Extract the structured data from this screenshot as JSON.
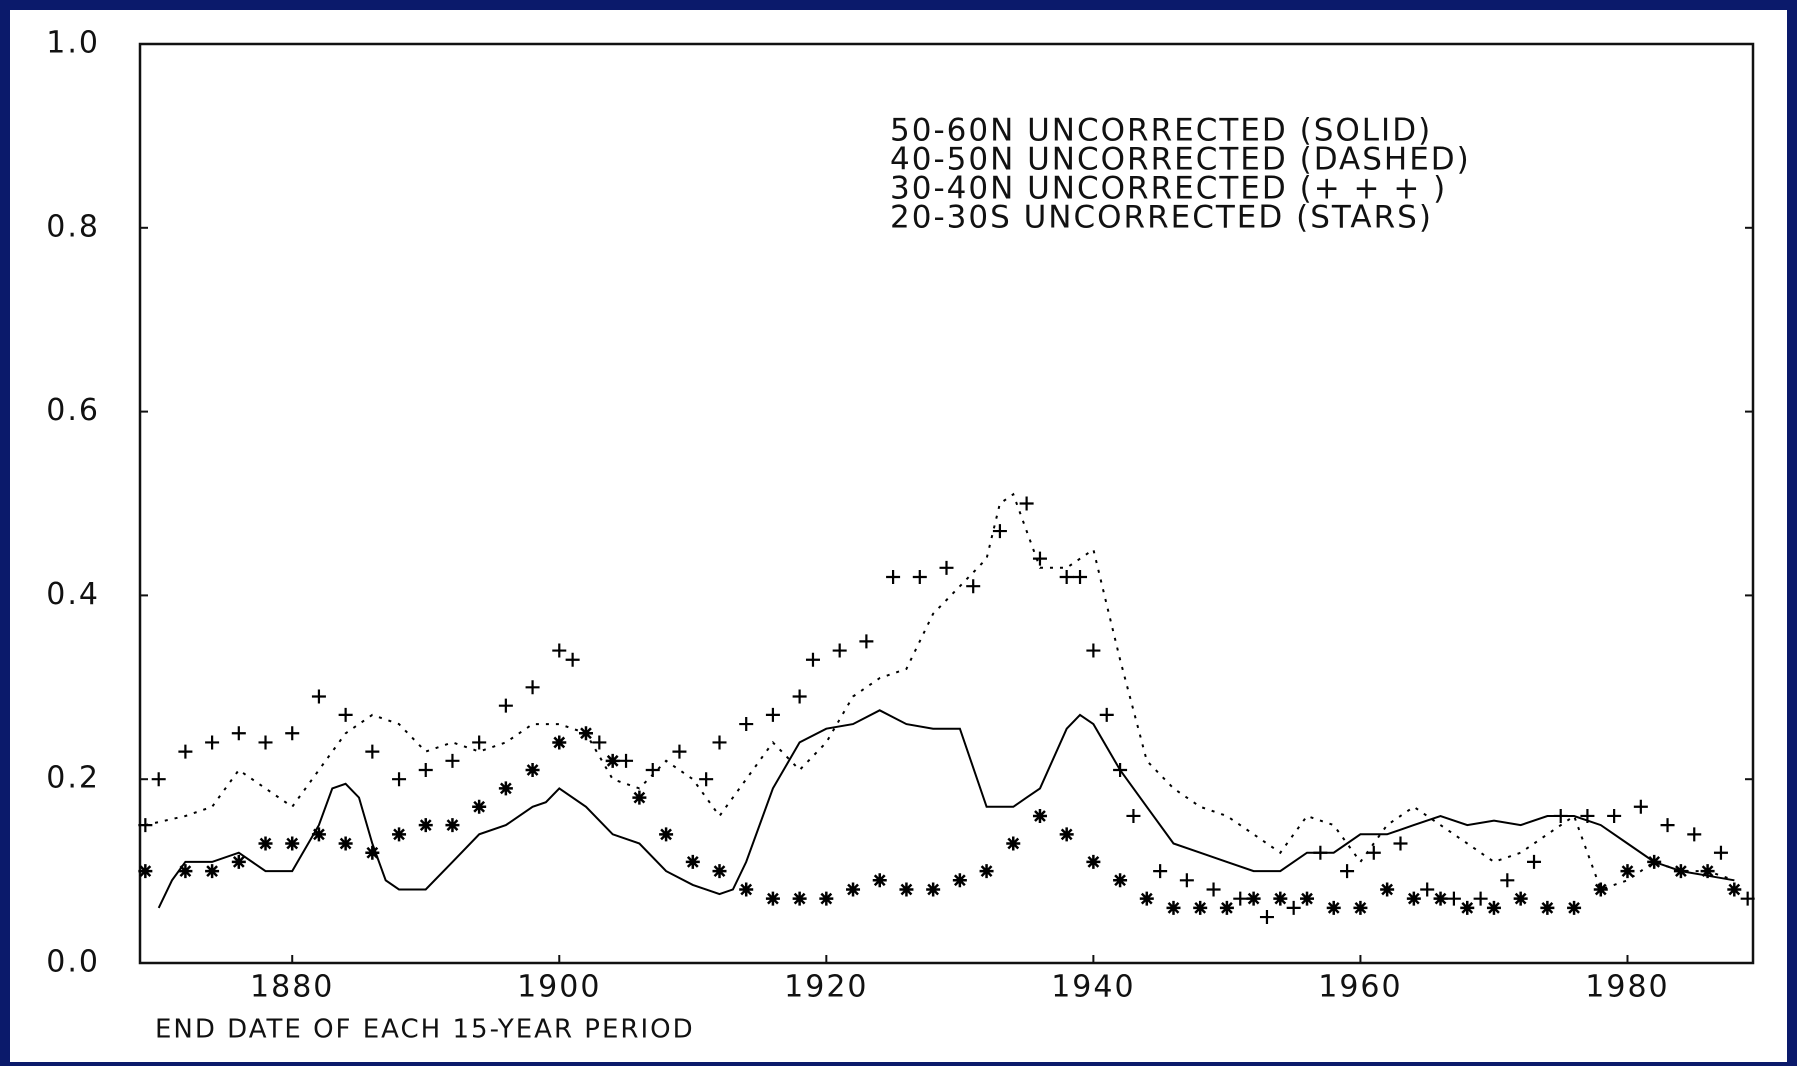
{
  "chart_data": {
    "type": "line",
    "xlabel": "END DATE OF EACH 15-YEAR PERIOD",
    "xlim": [
      1868.6,
      1989.4
    ],
    "ylim": [
      0,
      1
    ],
    "xticks": [
      1880,
      1900,
      1920,
      1940,
      1960,
      1980
    ],
    "yticks": [
      {
        "value": 0,
        "label": "0.0"
      },
      0.2,
      0.4,
      0.6,
      0.8,
      {
        "value": 1,
        "label": "1.0"
      }
    ],
    "series": [
      {
        "name": "50-60N UNCORRECTED (SOLID)",
        "color": "#000000",
        "line_style": "solid",
        "x": [
          1870,
          1871,
          1872,
          1874,
          1876,
          1878,
          1880,
          1882,
          1883,
          1884,
          1885,
          1886,
          1887,
          1888,
          1890,
          1892,
          1894,
          1896,
          1898,
          1899,
          1900,
          1902,
          1904,
          1906,
          1908,
          1910,
          1912,
          1913,
          1914,
          1916,
          1918,
          1920,
          1922,
          1924,
          1926,
          1928,
          1930,
          1932,
          1934,
          1935,
          1936,
          1938,
          1939,
          1940,
          1942,
          1944,
          1946,
          1948,
          1950,
          1952,
          1954,
          1956,
          1958,
          1960,
          1962,
          1964,
          1966,
          1968,
          1970,
          1972,
          1974,
          1976,
          1978,
          1980,
          1982,
          1984,
          1986,
          1988
        ],
        "values": [
          0.06,
          0.09,
          0.11,
          0.11,
          0.12,
          0.1,
          0.1,
          0.15,
          0.19,
          0.195,
          0.18,
          0.13,
          0.09,
          0.08,
          0.08,
          0.11,
          0.14,
          0.15,
          0.17,
          0.175,
          0.19,
          0.17,
          0.14,
          0.13,
          0.1,
          0.085,
          0.075,
          0.08,
          0.11,
          0.19,
          0.24,
          0.255,
          0.26,
          0.275,
          0.26,
          0.255,
          0.255,
          0.17,
          0.17,
          0.18,
          0.19,
          0.255,
          0.27,
          0.26,
          0.21,
          0.17,
          0.13,
          0.12,
          0.11,
          0.1,
          0.1,
          0.12,
          0.12,
          0.14,
          0.14,
          0.15,
          0.16,
          0.15,
          0.155,
          0.15,
          0.16,
          0.16,
          0.15,
          0.13,
          0.11,
          0.1,
          0.095,
          0.09
        ]
      },
      {
        "name": "40-50N UNCORRECTED (DASHED)",
        "color": "#000000",
        "line_style": "dashed",
        "x": [
          1869,
          1872,
          1874,
          1876,
          1878,
          1880,
          1882,
          1884,
          1886,
          1888,
          1890,
          1892,
          1894,
          1896,
          1898,
          1900,
          1902,
          1904,
          1906,
          1908,
          1910,
          1912,
          1914,
          1916,
          1918,
          1920,
          1922,
          1924,
          1926,
          1928,
          1930,
          1932,
          1933,
          1934,
          1936,
          1938,
          1940,
          1941,
          1942,
          1944,
          1946,
          1948,
          1950,
          1952,
          1954,
          1956,
          1958,
          1960,
          1962,
          1964,
          1966,
          1968,
          1970,
          1972,
          1974,
          1976,
          1978,
          1980,
          1982,
          1984,
          1986,
          1988
        ],
        "values": [
          0.15,
          0.16,
          0.17,
          0.21,
          0.19,
          0.17,
          0.21,
          0.25,
          0.27,
          0.26,
          0.23,
          0.24,
          0.23,
          0.24,
          0.26,
          0.26,
          0.25,
          0.2,
          0.19,
          0.22,
          0.2,
          0.16,
          0.2,
          0.24,
          0.21,
          0.24,
          0.29,
          0.31,
          0.32,
          0.38,
          0.41,
          0.44,
          0.5,
          0.51,
          0.43,
          0.43,
          0.45,
          0.39,
          0.33,
          0.22,
          0.19,
          0.17,
          0.16,
          0.14,
          0.12,
          0.16,
          0.15,
          0.11,
          0.15,
          0.17,
          0.15,
          0.13,
          0.11,
          0.12,
          0.14,
          0.16,
          0.08,
          0.09,
          0.11,
          0.1,
          0.1,
          0.09
        ]
      },
      {
        "name": "30-40N UNCORRECTED (+ + + )",
        "color": "#000000",
        "line_style": "plus",
        "x": [
          1869,
          1870,
          1872,
          1874,
          1876,
          1878,
          1880,
          1882,
          1884,
          1886,
          1888,
          1890,
          1892,
          1894,
          1896,
          1898,
          1900,
          1901,
          1903,
          1905,
          1907,
          1909,
          1911,
          1912,
          1914,
          1916,
          1918,
          1919,
          1921,
          1923,
          1925,
          1927,
          1929,
          1931,
          1933,
          1935,
          1936,
          1938,
          1939,
          1940,
          1941,
          1942,
          1943,
          1945,
          1947,
          1949,
          1951,
          1953,
          1955,
          1957,
          1959,
          1961,
          1963,
          1965,
          1967,
          1969,
          1971,
          1973,
          1975,
          1977,
          1979,
          1981,
          1983,
          1985,
          1987,
          1989
        ],
        "values": [
          0.15,
          0.2,
          0.23,
          0.24,
          0.25,
          0.24,
          0.25,
          0.29,
          0.27,
          0.23,
          0.2,
          0.21,
          0.22,
          0.24,
          0.28,
          0.3,
          0.34,
          0.33,
          0.24,
          0.22,
          0.21,
          0.23,
          0.2,
          0.24,
          0.26,
          0.27,
          0.29,
          0.33,
          0.34,
          0.35,
          0.42,
          0.42,
          0.43,
          0.41,
          0.47,
          0.5,
          0.44,
          0.42,
          0.42,
          0.34,
          0.27,
          0.21,
          0.16,
          0.1,
          0.09,
          0.08,
          0.07,
          0.05,
          0.06,
          0.12,
          0.1,
          0.12,
          0.13,
          0.08,
          0.07,
          0.07,
          0.09,
          0.11,
          0.16,
          0.16,
          0.16,
          0.17,
          0.15,
          0.14,
          0.12,
          0.07
        ]
      },
      {
        "name": "20-30S UNCORRECTED (STARS)",
        "color": "#000000",
        "line_style": "star",
        "x": [
          1869,
          1872,
          1874,
          1876,
          1878,
          1880,
          1882,
          1884,
          1886,
          1888,
          1890,
          1892,
          1894,
          1896,
          1898,
          1900,
          1902,
          1904,
          1906,
          1908,
          1910,
          1912,
          1914,
          1916,
          1918,
          1920,
          1922,
          1924,
          1926,
          1928,
          1930,
          1932,
          1934,
          1936,
          1938,
          1940,
          1942,
          1944,
          1946,
          1948,
          1950,
          1952,
          1954,
          1956,
          1958,
          1960,
          1962,
          1964,
          1966,
          1968,
          1970,
          1972,
          1974,
          1976,
          1978,
          1980,
          1982,
          1984,
          1986,
          1988
        ],
        "values": [
          0.1,
          0.1,
          0.1,
          0.11,
          0.13,
          0.13,
          0.14,
          0.13,
          0.12,
          0.14,
          0.15,
          0.15,
          0.17,
          0.19,
          0.21,
          0.24,
          0.25,
          0.22,
          0.18,
          0.14,
          0.11,
          0.1,
          0.08,
          0.07,
          0.07,
          0.07,
          0.08,
          0.09,
          0.08,
          0.08,
          0.09,
          0.1,
          0.13,
          0.16,
          0.14,
          0.11,
          0.09,
          0.07,
          0.06,
          0.06,
          0.06,
          0.07,
          0.07,
          0.07,
          0.06,
          0.06,
          0.08,
          0.07,
          0.07,
          0.06,
          0.06,
          0.07,
          0.06,
          0.06,
          0.08,
          0.1,
          0.11,
          0.1,
          0.1,
          0.08
        ]
      }
    ]
  }
}
